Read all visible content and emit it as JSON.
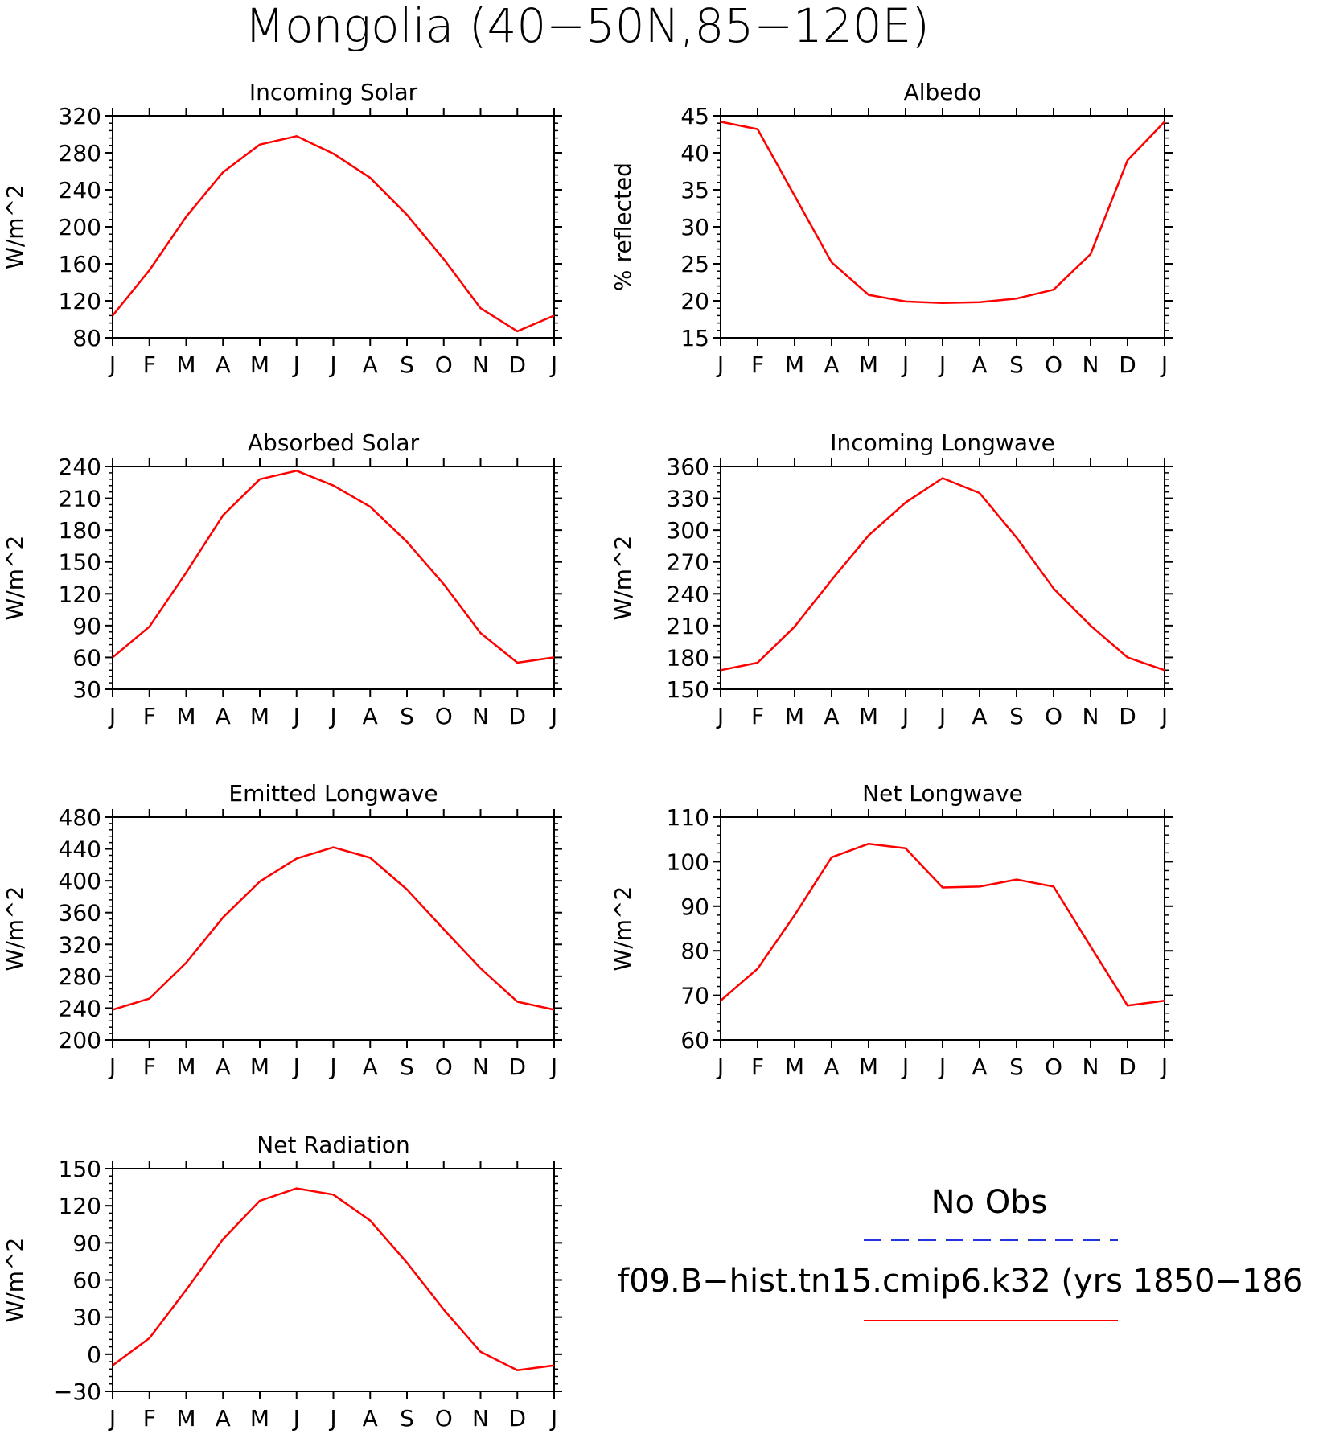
{
  "figure": {
    "title": "Mongolia (40−50N,85−120E)"
  },
  "legend": {
    "entries": [
      {
        "label": "No Obs",
        "color": "#2233dd",
        "style": "dashed"
      },
      {
        "label": "f09.B−hist.tn15.cmip6.k32 (yrs 1850−186",
        "color": "#ff0000",
        "style": "solid"
      }
    ]
  },
  "chart_data": [
    {
      "type": "line",
      "title": "Incoming Solar",
      "xlabel": "",
      "ylabel": "W/m^2",
      "categories": [
        "J",
        "F",
        "M",
        "A",
        "M",
        "J",
        "J",
        "A",
        "S",
        "O",
        "N",
        "D",
        "J"
      ],
      "ylim": [
        80,
        320
      ],
      "yticks": [
        "80",
        "120",
        "160",
        "200",
        "240",
        "280",
        "320"
      ],
      "grid": false,
      "series": [
        {
          "color": "#ff0000",
          "values": [
            104,
            153,
            211,
            259,
            289,
            298,
            279,
            253,
            213,
            165,
            112,
            87,
            104
          ]
        }
      ]
    },
    {
      "type": "line",
      "title": "Albedo",
      "xlabel": "",
      "ylabel": "% reflected",
      "categories": [
        "J",
        "F",
        "M",
        "A",
        "M",
        "J",
        "J",
        "A",
        "S",
        "O",
        "N",
        "D",
        "J"
      ],
      "ylim": [
        15,
        45
      ],
      "yticks": [
        "15",
        "20",
        "25",
        "30",
        "35",
        "40",
        "45"
      ],
      "grid": false,
      "series": [
        {
          "color": "#ff0000",
          "values": [
            44.2,
            43.2,
            34.2,
            25.2,
            20.8,
            19.9,
            19.7,
            19.8,
            20.3,
            21.5,
            26.3,
            39.0,
            44.2
          ]
        }
      ]
    },
    {
      "type": "line",
      "title": "Absorbed Solar",
      "xlabel": "",
      "ylabel": "W/m^2",
      "categories": [
        "J",
        "F",
        "M",
        "A",
        "M",
        "J",
        "J",
        "A",
        "S",
        "O",
        "N",
        "D",
        "J"
      ],
      "ylim": [
        30,
        240
      ],
      "yticks": [
        "30",
        "60",
        "90",
        "120",
        "150",
        "180",
        "210",
        "240"
      ],
      "grid": false,
      "series": [
        {
          "color": "#ff0000",
          "values": [
            60,
            89,
            140,
            194,
            228,
            236,
            222,
            202,
            169,
            129,
            83,
            55,
            60
          ]
        }
      ]
    },
    {
      "type": "line",
      "title": "Incoming Longwave",
      "xlabel": "",
      "ylabel": "W/m^2",
      "categories": [
        "J",
        "F",
        "M",
        "A",
        "M",
        "J",
        "J",
        "A",
        "S",
        "O",
        "N",
        "D",
        "J"
      ],
      "ylim": [
        150,
        360
      ],
      "yticks": [
        "150",
        "180",
        "210",
        "240",
        "270",
        "300",
        "330",
        "360"
      ],
      "grid": false,
      "series": [
        {
          "color": "#ff0000",
          "values": [
            168,
            175,
            209,
            253,
            295,
            326,
            349,
            335,
            293,
            245,
            210,
            180,
            168
          ]
        }
      ]
    },
    {
      "type": "line",
      "title": "Emitted Longwave",
      "xlabel": "",
      "ylabel": "W/m^2",
      "categories": [
        "J",
        "F",
        "M",
        "A",
        "M",
        "J",
        "J",
        "A",
        "S",
        "O",
        "N",
        "D",
        "J"
      ],
      "ylim": [
        200,
        480
      ],
      "yticks": [
        "200",
        "240",
        "280",
        "320",
        "360",
        "400",
        "440",
        "480"
      ],
      "grid": false,
      "series": [
        {
          "color": "#ff0000",
          "values": [
            238,
            252,
            297,
            354,
            399,
            428,
            442,
            429,
            389,
            339,
            290,
            248,
            238
          ]
        }
      ]
    },
    {
      "type": "line",
      "title": "Net Longwave",
      "xlabel": "",
      "ylabel": "W/m^2",
      "categories": [
        "J",
        "F",
        "M",
        "A",
        "M",
        "J",
        "J",
        "A",
        "S",
        "O",
        "N",
        "D",
        "J"
      ],
      "ylim": [
        60,
        110
      ],
      "yticks": [
        "60",
        "70",
        "80",
        "90",
        "100",
        "110"
      ],
      "grid": false,
      "series": [
        {
          "color": "#ff0000",
          "values": [
            68.8,
            76.0,
            88.0,
            101.0,
            104.0,
            103.0,
            94.2,
            94.4,
            96.0,
            94.4,
            81.0,
            67.7,
            68.8
          ]
        }
      ]
    },
    {
      "type": "line",
      "title": "Net Radiation",
      "xlabel": "",
      "ylabel": "W/m^2",
      "categories": [
        "J",
        "F",
        "M",
        "A",
        "M",
        "J",
        "J",
        "A",
        "S",
        "O",
        "N",
        "D",
        "J"
      ],
      "ylim": [
        -30,
        150
      ],
      "yticks": [
        "−30",
        "0",
        "30",
        "60",
        "90",
        "120",
        "150"
      ],
      "grid": false,
      "series": [
        {
          "color": "#ff0000",
          "values": [
            -9,
            13,
            52,
            93,
            124,
            134,
            129,
            108,
            74,
            36,
            2,
            -13,
            -9
          ]
        }
      ]
    }
  ]
}
